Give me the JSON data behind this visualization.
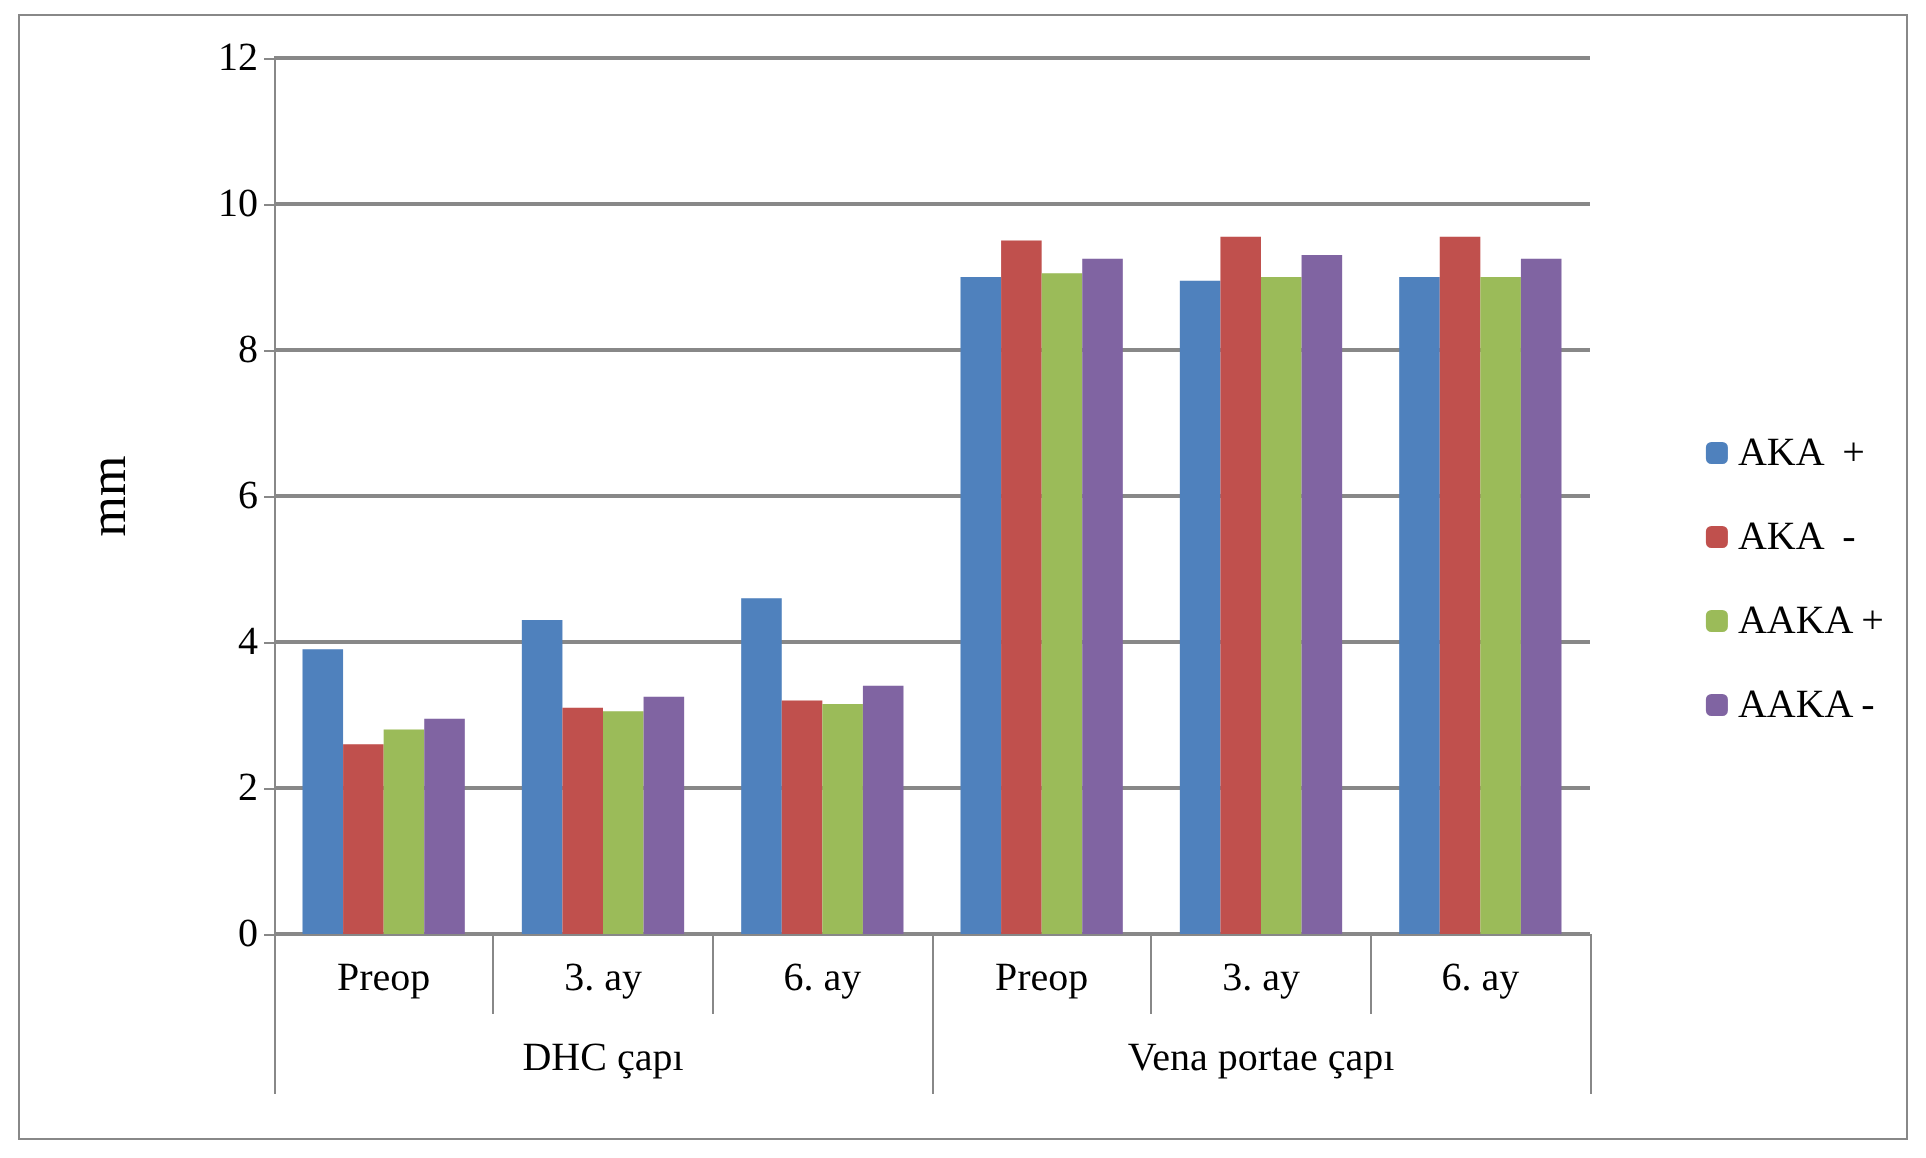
{
  "chart_data": {
    "type": "bar",
    "ylabel": "mm",
    "categories": [
      "Preop",
      "3. ay",
      "6. ay",
      "Preop",
      "3. ay",
      "6. ay"
    ],
    "annotations": [
      "DHC çapı",
      "Vena portae çapı"
    ],
    "series": [
      {
        "name": "AKA  +",
        "color": "#4f81bd",
        "values": [
          3.9,
          4.3,
          4.6,
          9.0,
          8.95,
          9.0
        ]
      },
      {
        "name": "AKA  -",
        "color": "#c0504d",
        "values": [
          2.6,
          3.1,
          3.2,
          9.5,
          9.55,
          9.55
        ]
      },
      {
        "name": "AAKA +",
        "color": "#9bbb59",
        "values": [
          2.8,
          3.05,
          3.15,
          9.05,
          9.0,
          9.0
        ]
      },
      {
        "name": "AAKA -",
        "color": "#8064a2",
        "values": [
          2.95,
          3.25,
          3.4,
          9.25,
          9.3,
          9.25
        ]
      }
    ],
    "ylim": [
      0,
      12
    ],
    "yticks": [
      0,
      2,
      4,
      6,
      8,
      10,
      12
    ],
    "grid": "y",
    "legend": "right"
  }
}
